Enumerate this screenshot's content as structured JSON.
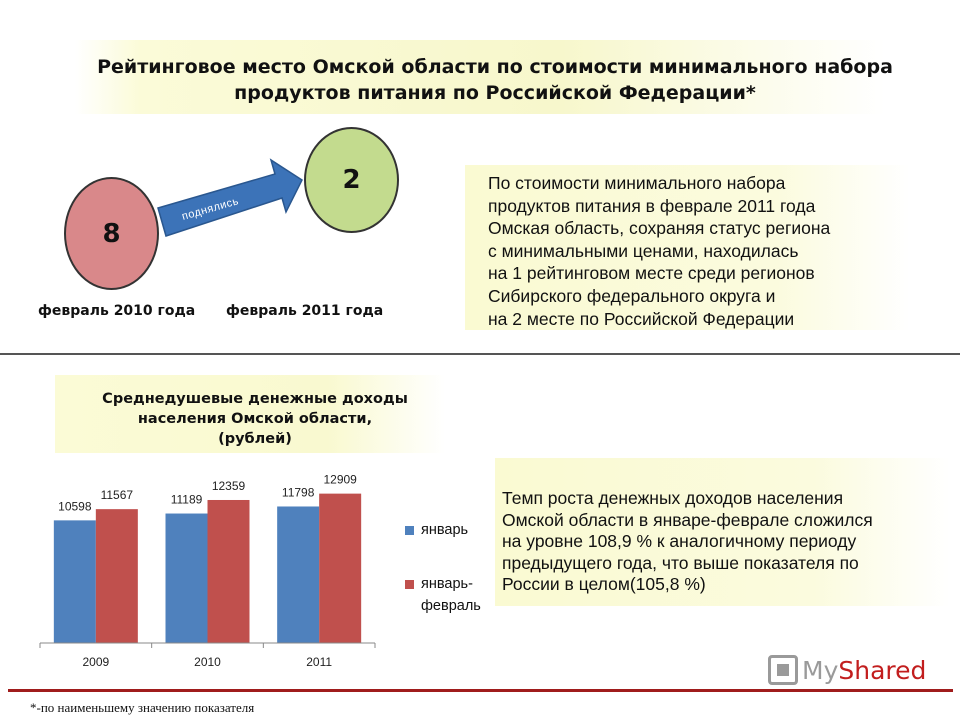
{
  "title": "Рейтинговое место Омской области по стоимости минимального набора продуктов питания по Российской Федерации*",
  "rank": {
    "previous_value": "8",
    "current_value": "2",
    "arrow_label": "поднялись",
    "previous_label": "февраль 2010 года",
    "current_label": "февраль 2011 года",
    "colors": {
      "previous": "#d9888a",
      "current": "#c3db8e",
      "arrow": "#3c73b8"
    }
  },
  "info_text_1": [
    "По стоимости минимального набора",
    "продуктов питания в феврале 2011 года",
    "Омская область, сохраняя статус региона",
    "с минимальными ценами, находилась",
    "на 1 рейтинговом месте среди регионов",
    "Сибирского федерального округа и",
    "на 2 месте по Российской Федерации"
  ],
  "info_text_2": [
    "Темп роста денежных доходов населения",
    "Омской области в январе-феврале сложился",
    "на уровне 108,9 % к аналогичному периоду",
    "предыдущего года, что выше показателя по",
    "России в целом(105,8 %)"
  ],
  "chart_data": {
    "type": "bar",
    "title": "Среднедушевые денежные доходы населения Омской области, (рублей)",
    "title_lines": [
      "Среднедушевые денежные доходы",
      "населения Омской области,",
      "(рублей)"
    ],
    "categories": [
      "2009",
      "2010",
      "2011"
    ],
    "series": [
      {
        "name": "январь",
        "values": [
          10598,
          11189,
          11798
        ],
        "color": "#4f81bd"
      },
      {
        "name": "январь-февраль",
        "values": [
          11567,
          12359,
          12909
        ],
        "color": "#c0504d"
      }
    ],
    "legend_labels": [
      [
        "январь"
      ],
      [
        "январь-",
        "февраль"
      ]
    ],
    "ylim": [
      0,
      14000
    ],
    "grid": false,
    "legend": "right"
  },
  "footnote": "*-по наименьшему значению показателя",
  "watermark": {
    "part1": "My",
    "part2": "Shared"
  }
}
